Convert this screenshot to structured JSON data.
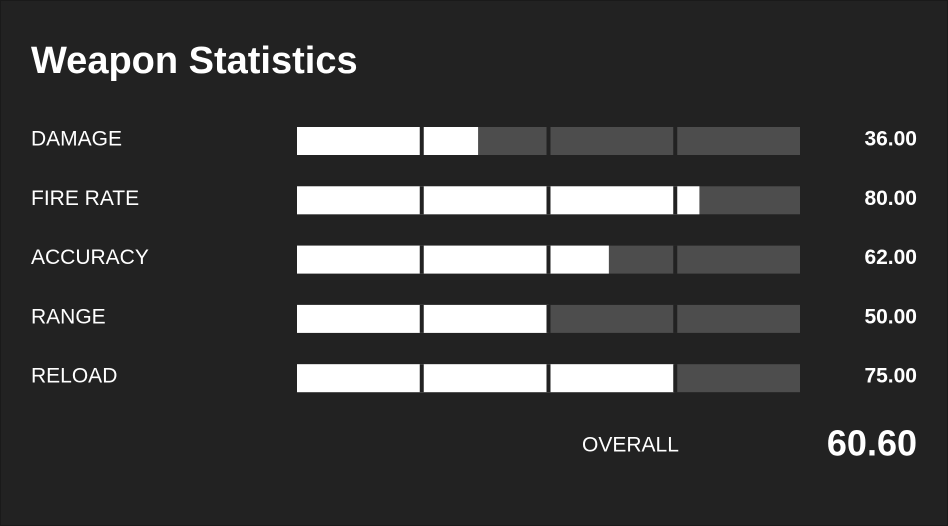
{
  "title": "Weapon Statistics",
  "xlim": [
    0,
    100
  ],
  "stats": [
    {
      "label": "DAMAGE",
      "value": 36,
      "value_label": "36.00"
    },
    {
      "label": "FIRE RATE",
      "value": 80,
      "value_label": "80.00"
    },
    {
      "label": "ACCURACY",
      "value": 62,
      "value_label": "62.00"
    },
    {
      "label": "RANGE",
      "value": 50,
      "value_label": "50.00"
    },
    {
      "label": "RELOAD",
      "value": 75,
      "value_label": "75.00"
    }
  ],
  "overall": {
    "label": "OVERALL",
    "value": 60.6,
    "value_label": "60.60"
  }
}
